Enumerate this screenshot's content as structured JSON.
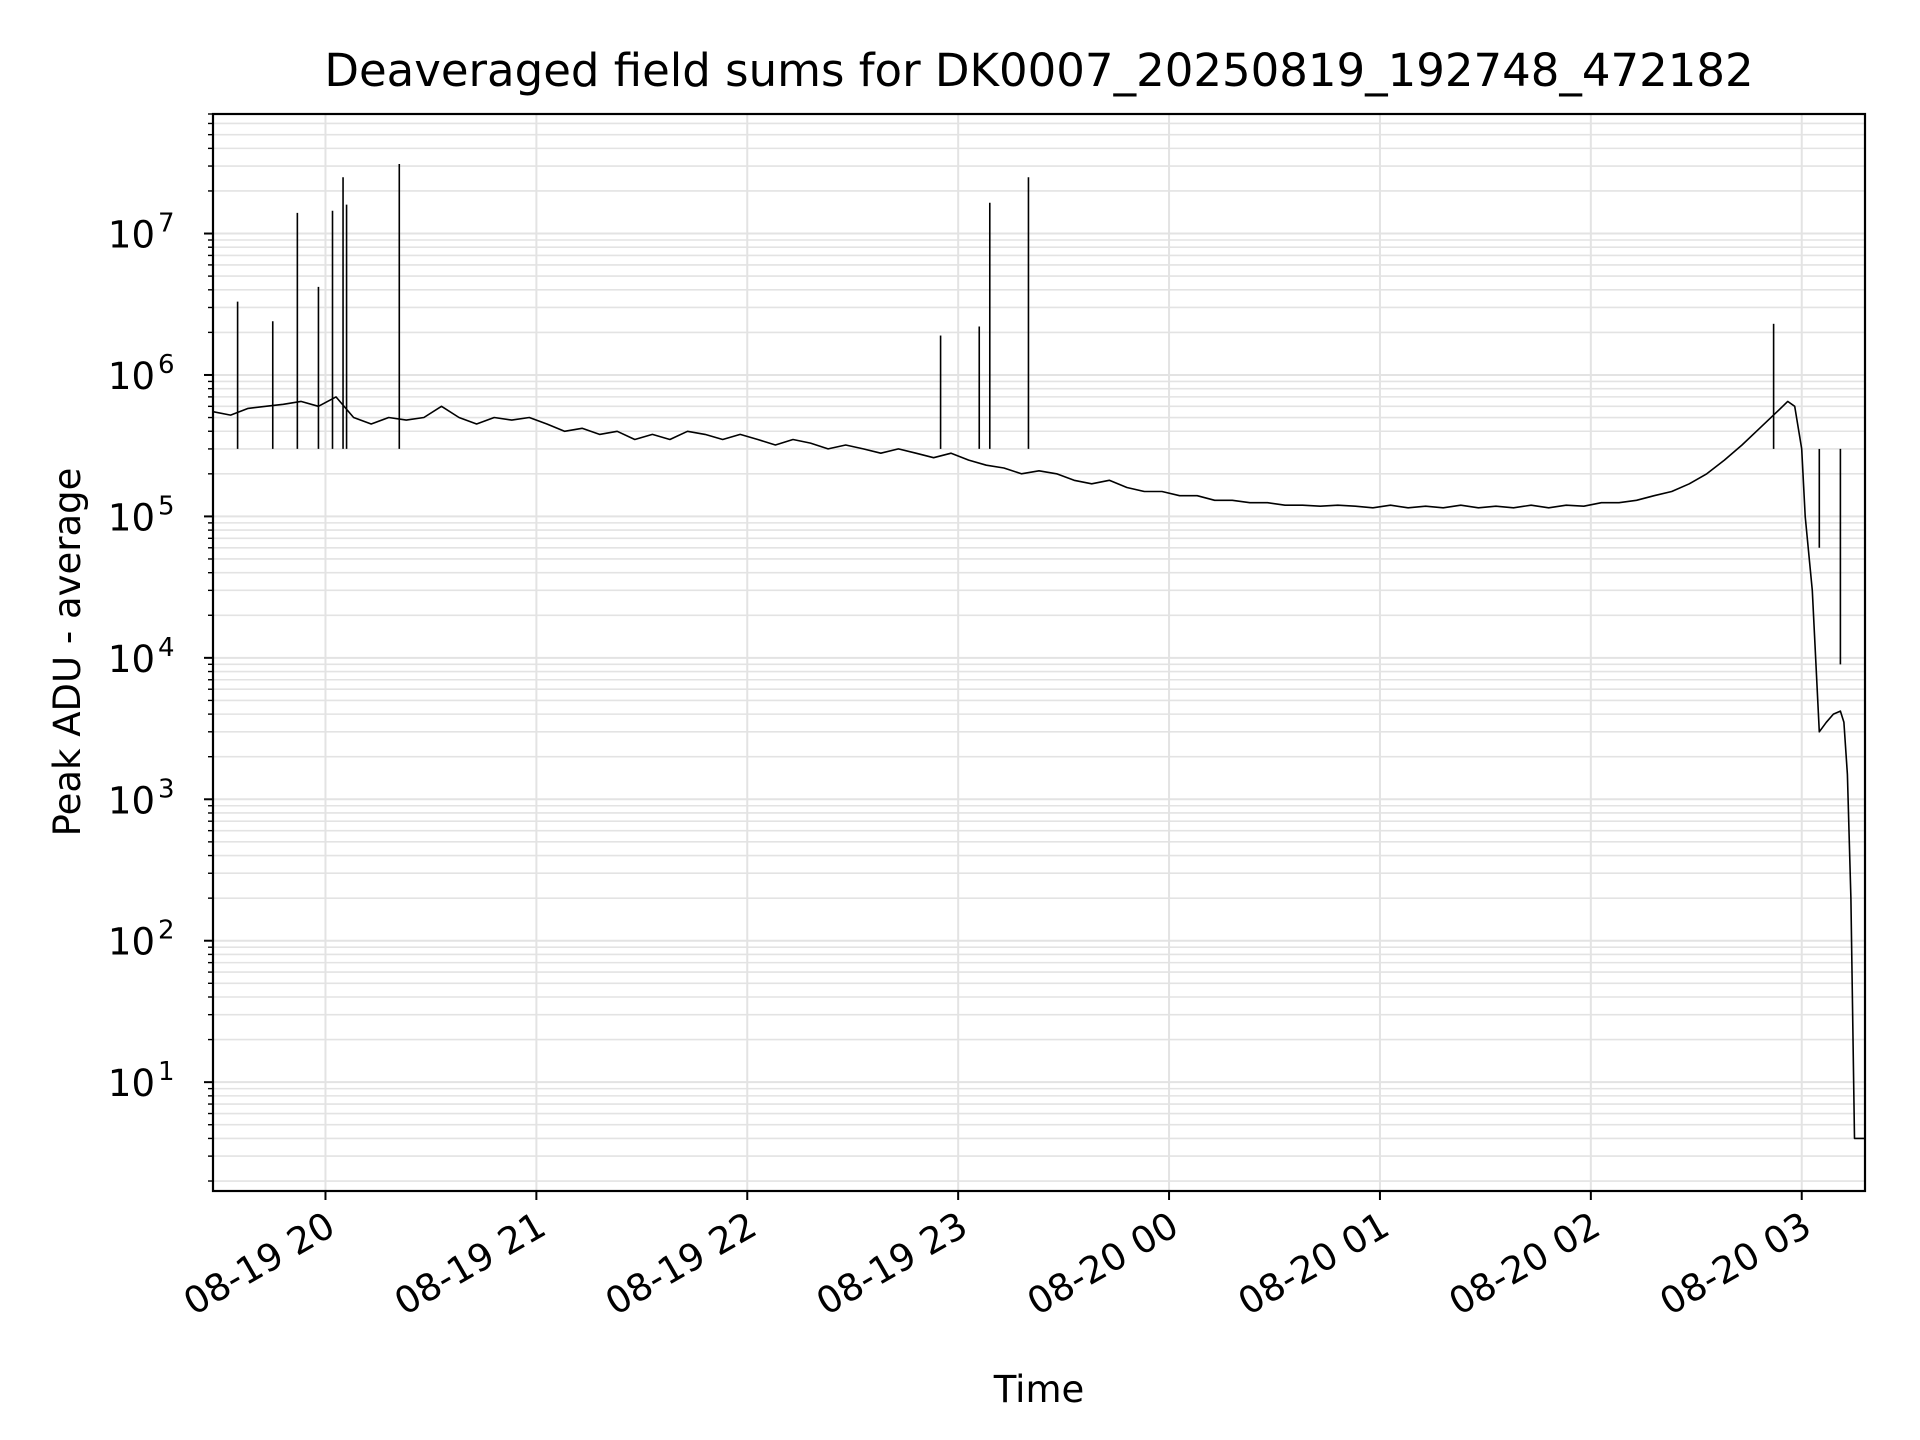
{
  "chart_data": {
    "type": "line",
    "title": "Deaveraged field sums for DK0007_20250819_192748_472182",
    "xlabel": "Time",
    "ylabel": "Peak ADU - average",
    "yscale": "log",
    "ylim": [
      1.7,
      70000000
    ],
    "xlim": [
      "2025-08-19 19:28",
      "2025-08-20 03:18"
    ],
    "grid": true,
    "line_color": "#000000",
    "grid_color": "#e3e3e3",
    "x_ticks": [
      {
        "value": "2025-08-19 20:00",
        "label": "08-19 20"
      },
      {
        "value": "2025-08-19 21:00",
        "label": "08-19 21"
      },
      {
        "value": "2025-08-19 22:00",
        "label": "08-19 22"
      },
      {
        "value": "2025-08-19 23:00",
        "label": "08-19 23"
      },
      {
        "value": "2025-08-20 00:00",
        "label": "08-20 00"
      },
      {
        "value": "2025-08-20 01:00",
        "label": "08-20 01"
      },
      {
        "value": "2025-08-20 02:00",
        "label": "08-20 02"
      },
      {
        "value": "2025-08-20 03:00",
        "label": "08-20 03"
      }
    ],
    "y_ticks": [
      {
        "value": 10,
        "base": "10",
        "exp": "1"
      },
      {
        "value": 100,
        "base": "10",
        "exp": "2"
      },
      {
        "value": 1000,
        "base": "10",
        "exp": "3"
      },
      {
        "value": 10000,
        "base": "10",
        "exp": "4"
      },
      {
        "value": 100000,
        "base": "10",
        "exp": "5"
      },
      {
        "value": 1000000,
        "base": "10",
        "exp": "6"
      },
      {
        "value": 10000000,
        "base": "10",
        "exp": "7"
      }
    ],
    "series": [
      {
        "x": [
          "2025-08-19 19:28",
          "2025-08-19 19:33",
          "2025-08-19 19:38",
          "2025-08-19 19:43",
          "2025-08-19 19:48",
          "2025-08-19 19:53",
          "2025-08-19 19:58",
          "2025-08-19 20:03",
          "2025-08-19 20:08",
          "2025-08-19 20:13",
          "2025-08-19 20:18",
          "2025-08-19 20:23",
          "2025-08-19 20:28",
          "2025-08-19 20:33",
          "2025-08-19 20:38",
          "2025-08-19 20:43",
          "2025-08-19 20:48",
          "2025-08-19 20:53",
          "2025-08-19 20:58",
          "2025-08-19 21:03",
          "2025-08-19 21:08",
          "2025-08-19 21:13",
          "2025-08-19 21:18",
          "2025-08-19 21:23",
          "2025-08-19 21:28",
          "2025-08-19 21:33",
          "2025-08-19 21:38",
          "2025-08-19 21:43",
          "2025-08-19 21:48",
          "2025-08-19 21:53",
          "2025-08-19 21:58",
          "2025-08-19 22:03",
          "2025-08-19 22:08",
          "2025-08-19 22:13",
          "2025-08-19 22:18",
          "2025-08-19 22:23",
          "2025-08-19 22:28",
          "2025-08-19 22:33",
          "2025-08-19 22:38",
          "2025-08-19 22:43",
          "2025-08-19 22:48",
          "2025-08-19 22:53",
          "2025-08-19 22:58",
          "2025-08-19 23:03",
          "2025-08-19 23:08",
          "2025-08-19 23:13",
          "2025-08-19 23:18",
          "2025-08-19 23:23",
          "2025-08-19 23:28",
          "2025-08-19 23:33",
          "2025-08-19 23:38",
          "2025-08-19 23:43",
          "2025-08-19 23:48",
          "2025-08-19 23:53",
          "2025-08-19 23:58",
          "2025-08-20 00:03",
          "2025-08-20 00:08",
          "2025-08-20 00:13",
          "2025-08-20 00:18",
          "2025-08-20 00:23",
          "2025-08-20 00:28",
          "2025-08-20 00:33",
          "2025-08-20 00:38",
          "2025-08-20 00:43",
          "2025-08-20 00:48",
          "2025-08-20 00:53",
          "2025-08-20 00:58",
          "2025-08-20 01:03",
          "2025-08-20 01:08",
          "2025-08-20 01:13",
          "2025-08-20 01:18",
          "2025-08-20 01:23",
          "2025-08-20 01:28",
          "2025-08-20 01:33",
          "2025-08-20 01:38",
          "2025-08-20 01:43",
          "2025-08-20 01:48",
          "2025-08-20 01:53",
          "2025-08-20 01:58",
          "2025-08-20 02:03",
          "2025-08-20 02:08",
          "2025-08-20 02:13",
          "2025-08-20 02:18",
          "2025-08-20 02:23",
          "2025-08-20 02:28",
          "2025-08-20 02:33",
          "2025-08-20 02:38",
          "2025-08-20 02:43",
          "2025-08-20 02:48",
          "2025-08-20 02:53",
          "2025-08-20 02:56",
          "2025-08-20 02:58",
          "2025-08-20 03:00",
          "2025-08-20 03:01",
          "2025-08-20 03:03",
          "2025-08-20 03:05",
          "2025-08-20 03:07",
          "2025-08-20 03:09",
          "2025-08-20 03:11",
          "2025-08-20 03:12",
          "2025-08-20 03:13",
          "2025-08-20 03:14",
          "2025-08-20 03:15",
          "2025-08-20 03:16",
          "2025-08-20 03:18"
        ],
        "y": [
          550000,
          520000,
          580000,
          600000,
          620000,
          650000,
          600000,
          700000,
          500000,
          450000,
          500000,
          480000,
          500000,
          600000,
          500000,
          450000,
          500000,
          480000,
          500000,
          450000,
          400000,
          420000,
          380000,
          400000,
          350000,
          380000,
          350000,
          400000,
          380000,
          350000,
          380000,
          350000,
          320000,
          350000,
          330000,
          300000,
          320000,
          300000,
          280000,
          300000,
          280000,
          260000,
          280000,
          250000,
          230000,
          220000,
          200000,
          210000,
          200000,
          180000,
          170000,
          180000,
          160000,
          150000,
          150000,
          140000,
          140000,
          130000,
          130000,
          125000,
          125000,
          120000,
          120000,
          118000,
          120000,
          118000,
          115000,
          120000,
          115000,
          118000,
          115000,
          120000,
          115000,
          118000,
          115000,
          120000,
          115000,
          120000,
          118000,
          125000,
          125000,
          130000,
          140000,
          150000,
          170000,
          200000,
          250000,
          320000,
          420000,
          550000,
          650000,
          600000,
          300000,
          100000,
          30000,
          3000,
          3500,
          4000,
          4200,
          3500,
          1500,
          200,
          4,
          4,
          4
        ]
      }
    ],
    "spikes": [
      {
        "x": "2025-08-19 19:35",
        "y": 3300000
      },
      {
        "x": "2025-08-19 19:45",
        "y": 2400000
      },
      {
        "x": "2025-08-19 19:52",
        "y": 14000000
      },
      {
        "x": "2025-08-19 19:58",
        "y": 4200000
      },
      {
        "x": "2025-08-19 20:02",
        "y": 14500000
      },
      {
        "x": "2025-08-19 20:05",
        "y": 25000000
      },
      {
        "x": "2025-08-19 20:06",
        "y": 16000000
      },
      {
        "x": "2025-08-19 20:21",
        "y": 31000000
      },
      {
        "x": "2025-08-19 23:09",
        "y": 16500000
      },
      {
        "x": "2025-08-19 23:20",
        "y": 25000000
      },
      {
        "x": "2025-08-19 23:06",
        "y": 2200000
      },
      {
        "x": "2025-08-19 22:55",
        "y": 1900000
      },
      {
        "x": "2025-08-20 02:52",
        "y": 2300000
      },
      {
        "x": "2025-08-20 03:05",
        "y": 60000
      },
      {
        "x": "2025-08-20 03:11",
        "y": 9000
      }
    ]
  }
}
